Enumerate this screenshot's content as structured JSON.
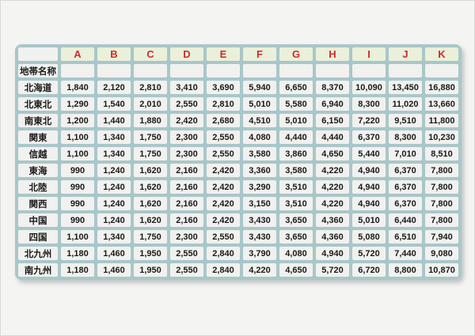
{
  "colors": {
    "page_background": "#f4f4f2",
    "grid_background": "#a9c7c9",
    "header_cell_background": "#eaf0da",
    "cell_background": "#f1f1ef",
    "highlight_cell_background": "#f3dc93",
    "red_text": "#d22a2a",
    "blue_text": "#2b55bd",
    "black_text": "#1a1a1a"
  },
  "chart_data": {
    "type": "table",
    "corner_label": "",
    "column_headers": [
      "A",
      "B",
      "C",
      "D",
      "E",
      "F",
      "G",
      "H",
      "I",
      "J",
      "K"
    ],
    "name_row_label": "地帯名称",
    "rows": [
      {
        "label": "北海道",
        "color": "red",
        "highlight": false,
        "values": [
          "1,840",
          "2,120",
          "2,810",
          "3,410",
          "3,690",
          "5,940",
          "6,650",
          "8,370",
          "10,090",
          "13,450",
          "16,880"
        ]
      },
      {
        "label": "北東北",
        "color": "blue",
        "highlight": false,
        "values": [
          "1,290",
          "1,540",
          "2,010",
          "2,550",
          "2,810",
          "5,010",
          "5,580",
          "6,940",
          "8,300",
          "11,020",
          "13,660"
        ]
      },
      {
        "label": "南東北",
        "color": "black",
        "highlight": true,
        "values": [
          "1,200",
          "1,440",
          "1,880",
          "2,420",
          "2,680",
          "4,510",
          "5,010",
          "6,150",
          "7,220",
          "9,510",
          "11,800"
        ]
      },
      {
        "label": "関東",
        "color": "red",
        "highlight": false,
        "values": [
          "1,100",
          "1,340",
          "1,750",
          "2,300",
          "2,550",
          "4,080",
          "4,440",
          "4,440",
          "6,370",
          "8,300",
          "10,230"
        ]
      },
      {
        "label": "信越",
        "color": "blue",
        "highlight": false,
        "values": [
          "1,100",
          "1,340",
          "1,750",
          "2,300",
          "2,550",
          "3,580",
          "3,860",
          "4,650",
          "5,440",
          "7,010",
          "8,510"
        ]
      },
      {
        "label": "東海",
        "color": "black",
        "highlight": true,
        "values": [
          "990",
          "1,240",
          "1,620",
          "2,160",
          "2,420",
          "3,360",
          "3,580",
          "4,220",
          "4,940",
          "6,370",
          "7,800"
        ]
      },
      {
        "label": "北陸",
        "color": "red",
        "highlight": false,
        "values": [
          "990",
          "1,240",
          "1,620",
          "2,160",
          "2,420",
          "3,290",
          "3,510",
          "4,220",
          "4,940",
          "6,370",
          "7,800"
        ]
      },
      {
        "label": "関西",
        "color": "blue",
        "highlight": false,
        "values": [
          "990",
          "1,240",
          "1,620",
          "2,160",
          "2,420",
          "3,150",
          "3,510",
          "4,220",
          "4,940",
          "6,370",
          "7,800"
        ]
      },
      {
        "label": "中国",
        "color": "black",
        "highlight": true,
        "values": [
          "990",
          "1,240",
          "1,620",
          "2,160",
          "2,420",
          "3,430",
          "3,650",
          "4,360",
          "5,010",
          "6,440",
          "7,800"
        ]
      },
      {
        "label": "四国",
        "color": "red",
        "highlight": false,
        "values": [
          "1,100",
          "1,340",
          "1,750",
          "2,300",
          "2,550",
          "3,430",
          "3,650",
          "4,360",
          "5,080",
          "6,510",
          "7,940"
        ]
      },
      {
        "label": "北九州",
        "color": "blue",
        "highlight": false,
        "values": [
          "1,180",
          "1,460",
          "1,950",
          "2,550",
          "2,840",
          "3,790",
          "4,080",
          "4,940",
          "5,720",
          "7,440",
          "9,080"
        ]
      },
      {
        "label": "南九州",
        "color": "black",
        "highlight": true,
        "values": [
          "1,180",
          "1,460",
          "1,950",
          "2,550",
          "2,840",
          "4,220",
          "4,650",
          "5,720",
          "6,720",
          "8,800",
          "10,870"
        ]
      }
    ]
  }
}
